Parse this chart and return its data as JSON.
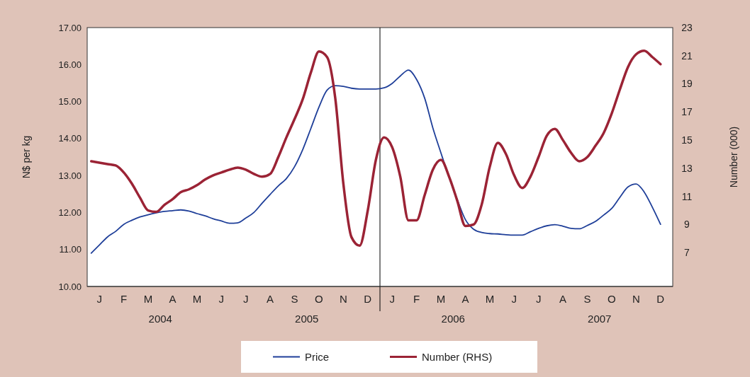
{
  "chart_data": {
    "type": "line",
    "ylabel": "N$ per kg",
    "y2label": "Number (000)",
    "categories": [
      null,
      "J",
      null,
      null,
      "F",
      null,
      null,
      "M",
      null,
      null,
      "A",
      null,
      null,
      "M",
      null,
      null,
      "J",
      null,
      null,
      "J",
      null,
      null,
      "A",
      null,
      null,
      "S",
      null,
      null,
      "O",
      null,
      null,
      "N",
      null,
      null,
      "D",
      null,
      null,
      "J",
      null,
      null,
      "F",
      null,
      null,
      "M",
      null,
      null,
      "A",
      null,
      null,
      "M",
      null,
      null,
      "J",
      null,
      null,
      "J",
      null,
      null,
      "A",
      null,
      null,
      "S",
      null,
      null,
      "O",
      null,
      null,
      "N",
      null,
      null,
      "D",
      null
    ],
    "ylim": [
      10,
      17
    ],
    "yticks": [
      {
        "value": 10,
        "label": "10.00"
      },
      {
        "value": 11,
        "label": "11.00"
      },
      {
        "value": 12,
        "label": "12.00"
      },
      {
        "value": 13,
        "label": "13.00"
      },
      {
        "value": 14,
        "label": "14.00"
      },
      {
        "value": 15,
        "label": "15.00"
      },
      {
        "value": 16,
        "label": "16.00"
      },
      {
        "value": 17,
        "label": "17.00"
      }
    ],
    "y2lim": [
      4.6,
      23
    ],
    "y2ticks": [
      7,
      9,
      11,
      13,
      15,
      17,
      19,
      21,
      23
    ],
    "legend": "bottom",
    "annotations": [
      "2004",
      "2005",
      "2006",
      "2007"
    ],
    "series": [
      {
        "name": "Price",
        "color": "#1f3f99",
        "values": [
          10.9,
          11.12,
          11.34,
          11.49,
          11.68,
          11.79,
          11.88,
          11.94,
          11.99,
          12.03,
          12.05,
          12.07,
          12.04,
          11.97,
          11.91,
          11.83,
          11.77,
          11.71,
          11.72,
          11.85,
          12.0,
          12.25,
          12.49,
          12.72,
          12.92,
          13.24,
          13.7,
          14.27,
          14.85,
          15.31,
          15.43,
          15.41,
          15.36,
          15.34,
          15.34,
          15.34,
          15.37,
          15.49,
          15.69,
          15.85,
          15.6,
          15.09,
          14.29,
          13.61,
          12.95,
          12.35,
          11.81,
          11.55,
          11.46,
          11.43,
          11.42,
          11.4,
          11.39,
          11.39,
          11.48,
          11.57,
          11.64,
          11.67,
          11.63,
          11.57,
          11.56,
          11.65,
          11.76,
          11.93,
          12.11,
          12.41,
          12.69,
          12.77,
          12.55,
          12.14,
          11.68,
          null
        ]
      },
      {
        "name": "Number (RHS)",
        "color": "#9b2335",
        "axis": "y2",
        "values": [
          13.5,
          13.4,
          13.3,
          13.2,
          12.7,
          11.9,
          10.9,
          10.0,
          9.9,
          10.4,
          10.8,
          11.3,
          11.5,
          11.8,
          12.2,
          12.5,
          12.7,
          12.9,
          13.05,
          12.9,
          12.6,
          12.4,
          12.6,
          13.8,
          15.2,
          16.5,
          17.9,
          19.8,
          21.3,
          20.9,
          18.0,
          11.9,
          8.1,
          7.5,
          10.0,
          13.6,
          15.2,
          14.5,
          12.4,
          9.3,
          9.3,
          11.1,
          12.9,
          13.6,
          12.4,
          10.7,
          8.9,
          9.0,
          10.4,
          13.1,
          14.8,
          14.0,
          12.5,
          11.6,
          12.4,
          13.8,
          15.3,
          15.8,
          15.0,
          14.1,
          13.5,
          13.8,
          14.6,
          15.5,
          16.9,
          18.6,
          20.2,
          21.1,
          21.35,
          20.9,
          20.4,
          null
        ]
      }
    ]
  }
}
